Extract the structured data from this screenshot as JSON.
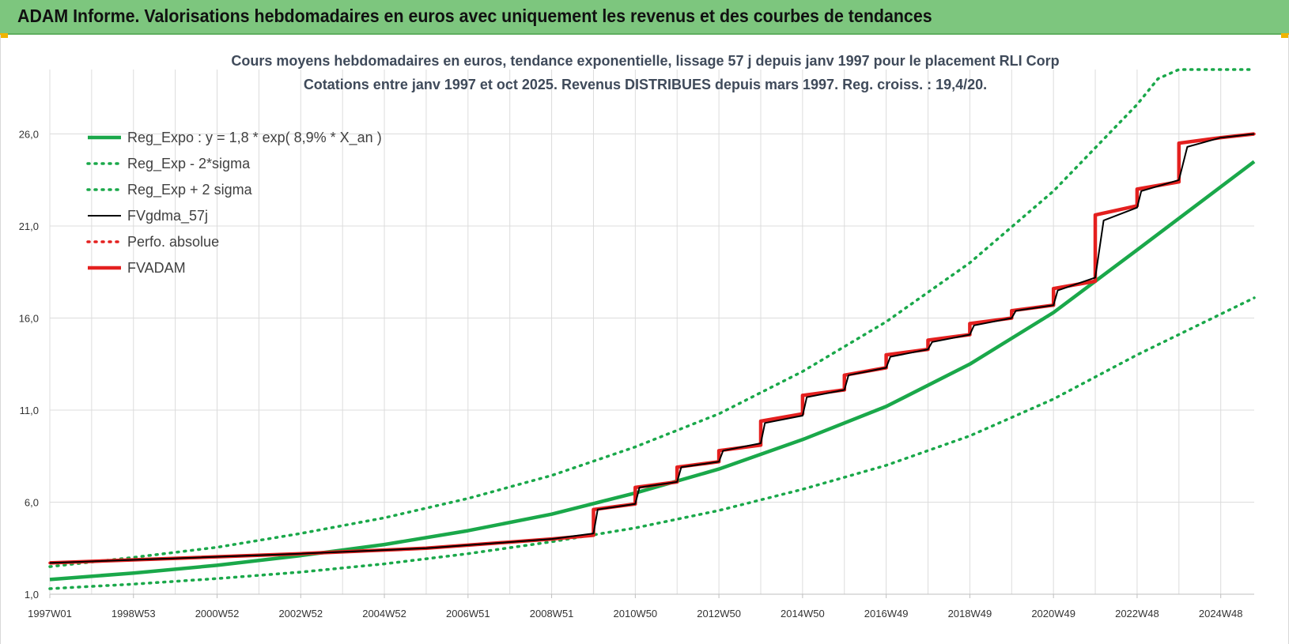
{
  "header": {
    "title": "ADAM Informe. Valorisations hebdomadaires en euros avec uniquement les revenus et des courbes de tendances",
    "background": "#7dc67e"
  },
  "chart_data": {
    "type": "line",
    "title": "Cours moyens hebdomadaires en euros, tendance exponentielle, lissage 57 j depuis janv 1997 pour le placement RLI Corp",
    "subtitle": "Cotations entre janv 1997 et oct 2025. Revenus DISTRIBUES depuis mars 1997. Reg. croiss. : 19,4/20.",
    "xlabel": "",
    "ylabel": "",
    "ylim": [
      1.0,
      29.5
    ],
    "xlim": [
      1997.0,
      2025.8
    ],
    "grid": true,
    "legend_position": "top-left",
    "y_ticks": [
      "1,0",
      "6,0",
      "11,0",
      "16,0",
      "21,0",
      "26,0"
    ],
    "x_ticks": [
      "1997W01",
      "1998W53",
      "2000W52",
      "2002W52",
      "2004W52",
      "2006W51",
      "2008W51",
      "2010W50",
      "2012W50",
      "2014W50",
      "2016W49",
      "2018W49",
      "2020W49",
      "2022W48",
      "2024W48"
    ],
    "series": [
      {
        "name": "Reg_Expo : y = 1,8 * exp( 8,9% *  X_an )",
        "color": "#1aa84a",
        "style": "solid",
        "x": [
          1997,
          1999,
          2001,
          2003,
          2005,
          2007,
          2009,
          2011,
          2013,
          2015,
          2017,
          2019,
          2021,
          2023,
          2025.8
        ],
        "values": [
          1.8,
          2.15,
          2.57,
          3.1,
          3.7,
          4.45,
          5.35,
          6.5,
          7.8,
          9.4,
          11.2,
          13.5,
          16.3,
          19.7,
          24.5
        ]
      },
      {
        "name": "Reg_Exp - 2*sigma",
        "color": "#1aa84a",
        "style": "dotted",
        "x": [
          1997,
          1999,
          2001,
          2003,
          2005,
          2007,
          2009,
          2011,
          2013,
          2015,
          2017,
          2019,
          2021,
          2023,
          2025.8
        ],
        "values": [
          1.3,
          1.55,
          1.85,
          2.2,
          2.65,
          3.2,
          3.85,
          4.6,
          5.55,
          6.7,
          8.0,
          9.6,
          11.6,
          14.0,
          17.1
        ]
      },
      {
        "name": "Reg_Exp + 2 sigma",
        "color": "#1aa84a",
        "style": "dotted",
        "x": [
          1997,
          1999,
          2001,
          2003,
          2005,
          2007,
          2009,
          2011,
          2013,
          2015,
          2017,
          2019,
          2021,
          2023,
          2023.5,
          2024,
          2025.8
        ],
        "values": [
          2.5,
          3.0,
          3.55,
          4.3,
          5.15,
          6.2,
          7.45,
          9.0,
          10.8,
          13.1,
          15.8,
          19.0,
          22.9,
          27.6,
          29.0,
          29.5,
          29.5
        ]
      },
      {
        "name": "FVgdma_57j",
        "color": "#000000",
        "style": "solid",
        "x": [
          1997,
          2000,
          2003,
          2006,
          2009,
          2010.0,
          2010.1,
          2011.0,
          2011.1,
          2012.0,
          2012.1,
          2013.0,
          2013.1,
          2014.0,
          2014.1,
          2015.0,
          2015.1,
          2016.0,
          2016.1,
          2017.0,
          2017.1,
          2018.0,
          2018.1,
          2019.0,
          2019.1,
          2020.0,
          2020.1,
          2021.0,
          2021.1,
          2022.0,
          2022.2,
          2023.0,
          2023.1,
          2024.0,
          2024.2,
          2025.0,
          2025.8
        ],
        "values": [
          2.7,
          2.95,
          3.2,
          3.5,
          4.0,
          4.3,
          5.6,
          5.9,
          6.8,
          7.1,
          7.9,
          8.2,
          8.8,
          9.2,
          10.3,
          10.7,
          11.7,
          12.1,
          12.9,
          13.3,
          13.9,
          14.3,
          14.7,
          15.1,
          15.6,
          16.0,
          16.4,
          16.7,
          17.5,
          18.2,
          21.3,
          22.0,
          22.9,
          23.5,
          25.3,
          25.8,
          26.0
        ]
      },
      {
        "name": "Perfo. absolue",
        "color": "#e4201f",
        "style": "dotted",
        "x": [
          1997,
          2000,
          2003,
          2006,
          2009,
          2010.0,
          2010.0,
          2011.0,
          2011.0,
          2012.0,
          2012.0,
          2013.0,
          2013.0,
          2014.0,
          2014.0,
          2015.0,
          2015.0,
          2016.0,
          2016.0,
          2017.0,
          2017.0,
          2018.0,
          2018.0,
          2019.0,
          2019.0,
          2020.0,
          2020.0,
          2021.0,
          2021.0,
          2022.0,
          2022.0,
          2023.0,
          2023.0,
          2024.0,
          2024.0,
          2025.0,
          2025.8
        ],
        "values": [
          2.7,
          2.95,
          3.2,
          3.5,
          4.0,
          4.2,
          5.6,
          5.9,
          6.8,
          7.1,
          7.9,
          8.2,
          8.8,
          9.1,
          10.4,
          10.8,
          11.8,
          12.1,
          12.9,
          13.3,
          14.0,
          14.3,
          14.8,
          15.1,
          15.7,
          16.0,
          16.4,
          16.7,
          17.6,
          18.0,
          21.6,
          22.1,
          23.0,
          23.4,
          25.5,
          25.8,
          26.0
        ]
      },
      {
        "name": "FVADAM",
        "color": "#e4201f",
        "style": "solid",
        "x": [
          1997,
          2000,
          2003,
          2006,
          2009,
          2010.0,
          2010.0,
          2011.0,
          2011.0,
          2012.0,
          2012.0,
          2013.0,
          2013.0,
          2014.0,
          2014.0,
          2015.0,
          2015.0,
          2016.0,
          2016.0,
          2017.0,
          2017.0,
          2018.0,
          2018.0,
          2019.0,
          2019.0,
          2020.0,
          2020.0,
          2021.0,
          2021.0,
          2022.0,
          2022.0,
          2023.0,
          2023.0,
          2024.0,
          2024.0,
          2025.0,
          2025.8
        ],
        "values": [
          2.7,
          2.95,
          3.2,
          3.5,
          4.0,
          4.2,
          5.6,
          5.9,
          6.8,
          7.1,
          7.9,
          8.2,
          8.8,
          9.1,
          10.4,
          10.8,
          11.8,
          12.1,
          12.9,
          13.3,
          14.0,
          14.3,
          14.8,
          15.1,
          15.7,
          16.0,
          16.4,
          16.7,
          17.6,
          18.0,
          21.6,
          22.1,
          23.0,
          23.4,
          25.5,
          25.8,
          26.0
        ]
      }
    ]
  }
}
